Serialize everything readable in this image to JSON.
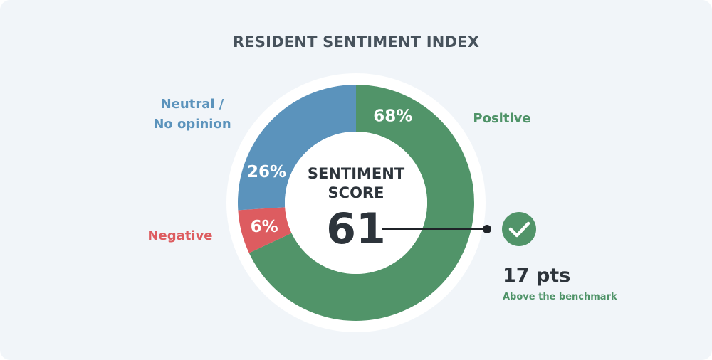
{
  "chart_data": {
    "type": "pie",
    "variant": "donut",
    "title": "RESIDENT SENTIMENT INDEX",
    "categories": [
      "Positive",
      "Negative",
      "Neutral / No opinion"
    ],
    "category_lines": [
      [
        "Positive"
      ],
      [
        "Negative"
      ],
      [
        "Neutral /",
        "No opinion"
      ]
    ],
    "values": [
      68,
      6,
      26
    ],
    "value_labels": [
      "68%",
      "6%",
      "26%"
    ],
    "colors": [
      "#519469",
      "#dd5c60",
      "#5b93bc"
    ],
    "center": {
      "label_line1": "SENTIMENT",
      "label_line2": "SCORE",
      "value": "61"
    },
    "callout": {
      "value": "17 pts",
      "caption": "Above the benchmark",
      "icon": "check-circle-icon",
      "color": "#519469"
    }
  }
}
